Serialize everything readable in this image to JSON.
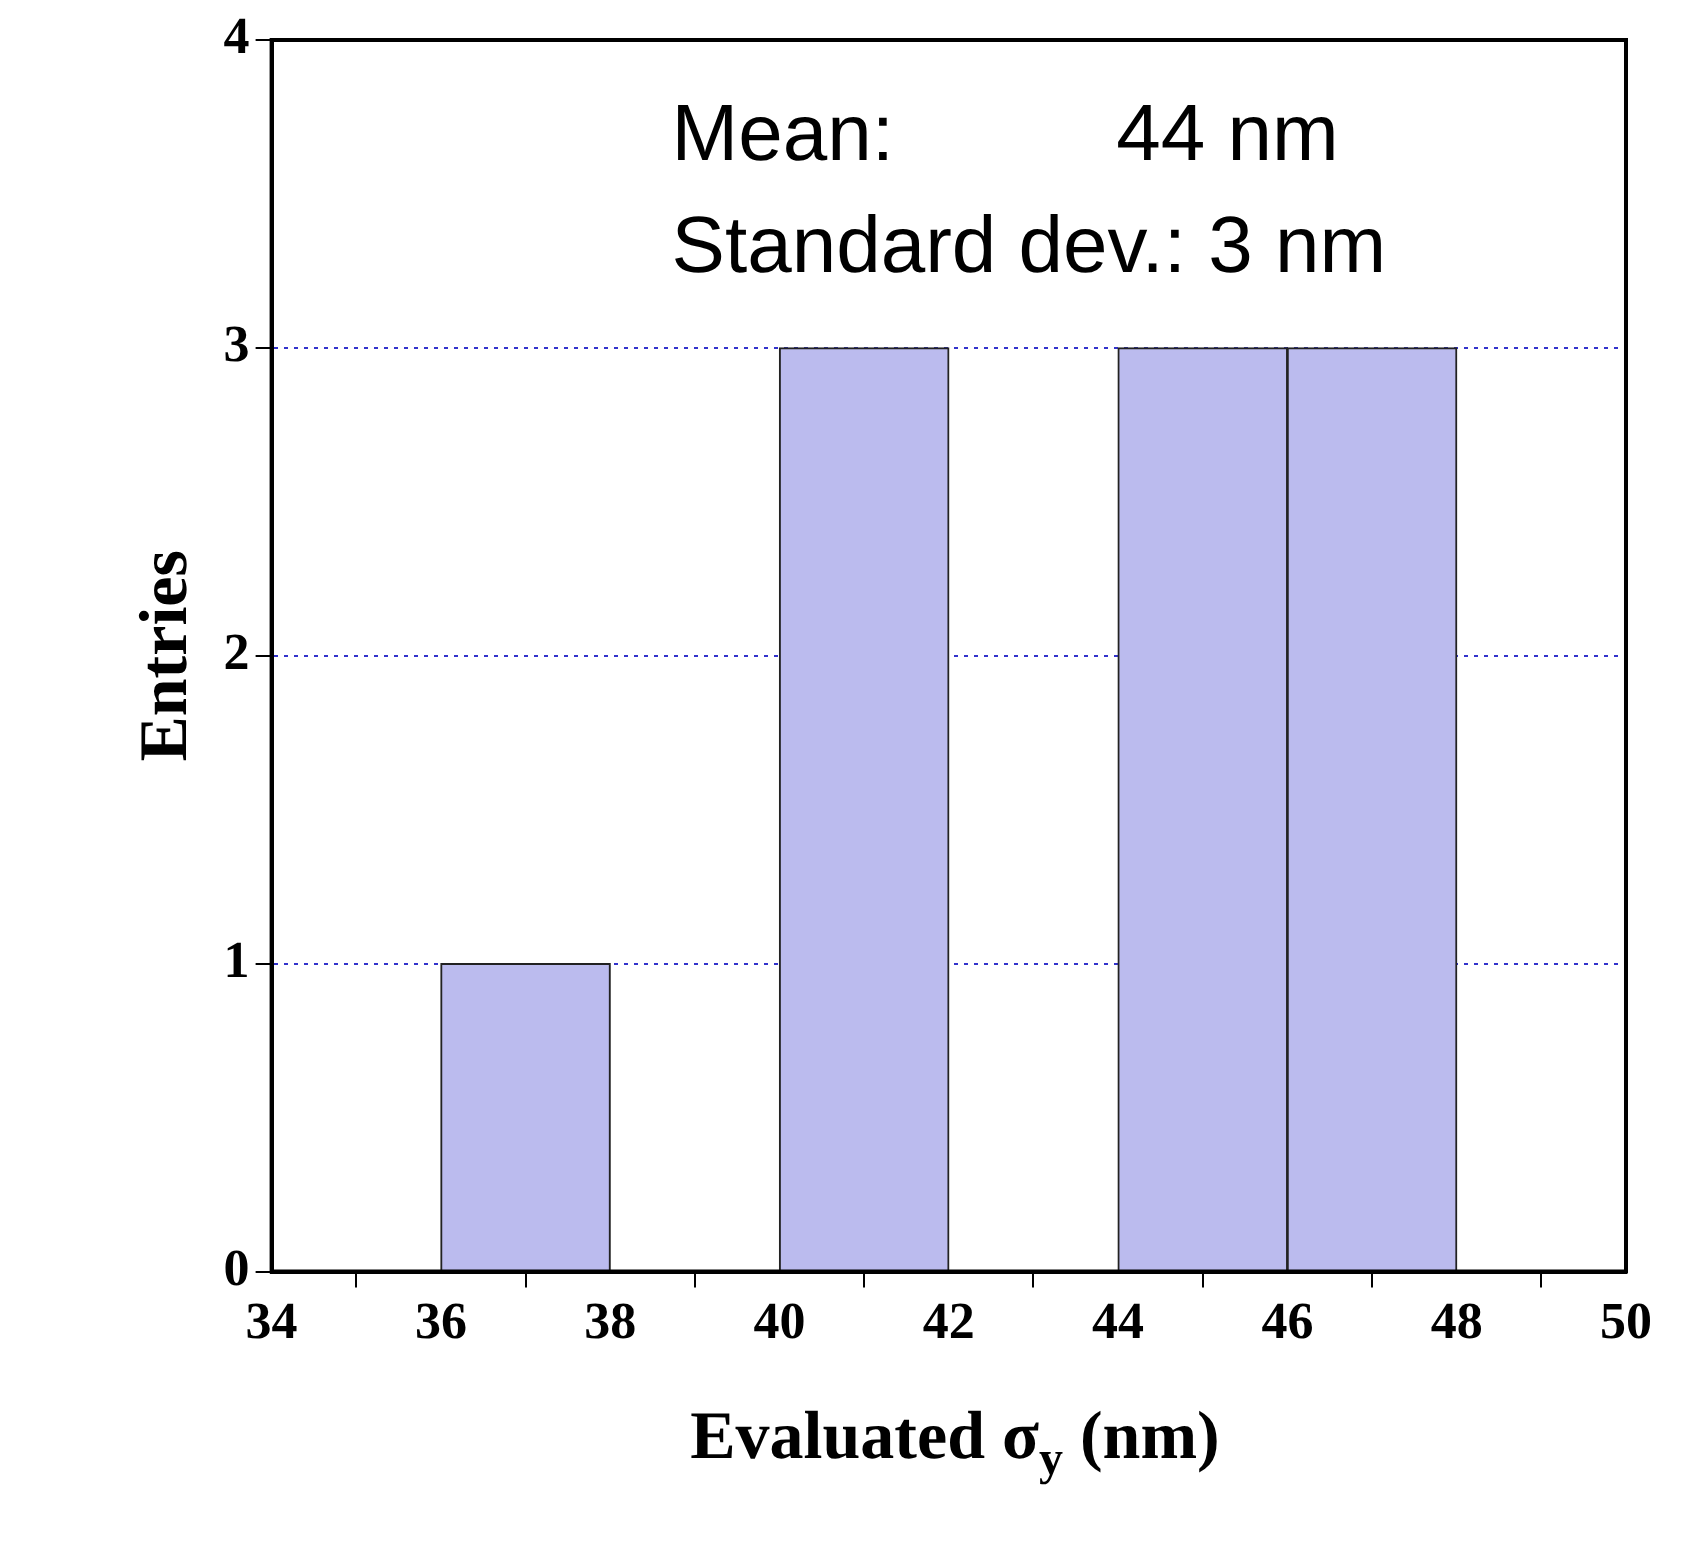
{
  "chart_data": {
    "type": "histogram",
    "xlabel": "Evaluated σ$_{y}$ (nm)",
    "ylabel": "Entries",
    "bins": [
      36,
      38,
      40,
      42,
      44,
      46,
      48
    ],
    "values": [
      1,
      0,
      3,
      0,
      3,
      3
    ],
    "color": "#bbbbee",
    "xlim": [
      34,
      50
    ],
    "xticks": [
      34,
      36,
      38,
      40,
      42,
      44,
      46,
      48,
      50
    ],
    "ylim": [
      0,
      4
    ],
    "yticks": [
      0,
      1,
      2,
      3,
      4
    ],
    "grid": "y",
    "annotations": [
      "Mean:          44 nm",
      "Standard dev.: 3 nm"
    ]
  }
}
